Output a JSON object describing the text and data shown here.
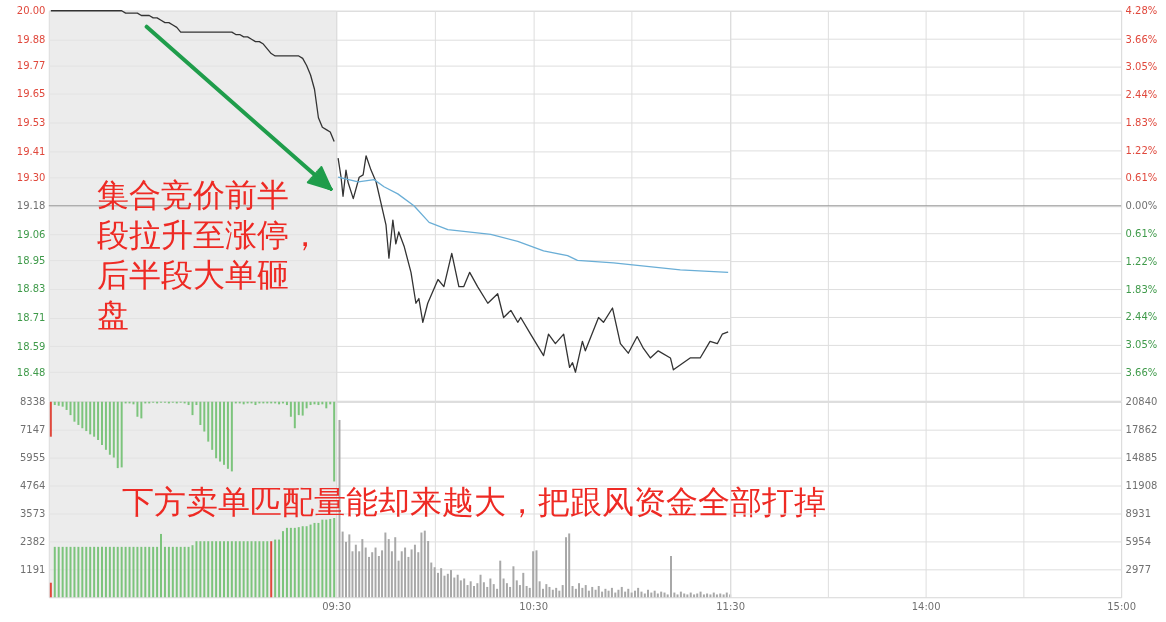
{
  "chart_data": [
    {
      "type": "line",
      "categories": [
        null,
        null,
        null,
        null,
        null,
        null,
        null,
        null,
        null,
        null,
        null,
        null,
        null,
        null,
        null,
        null,
        null,
        null,
        null,
        null,
        null,
        null,
        null,
        null,
        null,
        null,
        null,
        null,
        null,
        null,
        null,
        null,
        null,
        null,
        null,
        null,
        null,
        null,
        null,
        null,
        null,
        null,
        null,
        null,
        null,
        null,
        null,
        null,
        null,
        null,
        null,
        null,
        null,
        null,
        null,
        null,
        null,
        null,
        null,
        null,
        null,
        null,
        null,
        null,
        null,
        null,
        null,
        null,
        null,
        null,
        null,
        null,
        null
      ],
      "ylim": [
        18.36,
        20.0
      ],
      "yticks": [
        {
          "value": 20.0,
          "label": "20.00"
        },
        19.88,
        19.77,
        19.65,
        19.53,
        19.41,
        {
          "value": 19.3,
          "label": "19.30"
        },
        19.18,
        19.06,
        18.95,
        18.83,
        18.71,
        18.59,
        18.48
      ],
      "tick_labels": "y",
      "grid": "y",
      "bands": [
        {
          "axis": "y",
          "from": 18.36,
          "to": 20.0,
          "color": "#e4e4e4"
        }
      ],
      "ref_lines": [
        {
          "axis": "y",
          "value": 19.18,
          "color": "#9a9a9a"
        }
      ],
      "annotations": [
        "集合竞价前半段拉升至涨停，后半段大单砸盘"
      ],
      "series": [
        {
          "color": "#333333",
          "values": [
            20.0,
            20.0,
            20.0,
            20.0,
            20.0,
            20.0,
            20.0,
            20.0,
            20.0,
            20.0,
            20.0,
            20.0,
            20.0,
            20.0,
            20.0,
            20.0,
            20.0,
            20.0,
            20.0,
            19.99,
            19.99,
            19.99,
            19.99,
            19.98,
            19.98,
            19.98,
            19.97,
            19.97,
            19.96,
            19.95,
            19.95,
            19.94,
            19.93,
            19.91,
            19.91,
            19.91,
            19.91,
            19.91,
            19.91,
            19.91,
            19.91,
            19.91,
            19.91,
            19.91,
            19.91,
            19.91,
            19.91,
            19.9,
            19.9,
            19.89,
            19.89,
            19.88,
            19.87,
            19.87,
            19.86,
            19.84,
            19.82,
            19.81,
            19.81,
            19.81,
            19.81,
            19.81,
            19.81,
            19.81,
            19.8,
            19.77,
            19.73,
            19.67,
            19.55,
            19.51,
            19.5,
            19.49,
            19.45
          ]
        }
      ]
    },
    {
      "type": "line",
      "xlim": [
        9.5,
        11.5
      ],
      "xticks": [
        {
          "value": 9.5,
          "label": null
        },
        {
          "value": 10,
          "label": null
        },
        {
          "value": 10.5,
          "label": null
        },
        {
          "value": 11,
          "label": null
        },
        {
          "value": 11.5,
          "label": null
        }
      ],
      "ylim": [
        18.36,
        20.0
      ],
      "yticks": [
        {
          "value": 20.0,
          "label": "20.00"
        },
        19.88,
        19.77,
        19.65,
        19.53,
        19.41,
        {
          "value": 19.3,
          "label": "19.30"
        },
        19.18,
        19.06,
        18.95,
        18.83,
        18.71,
        18.59,
        18.48
      ],
      "tick_labels": false,
      "grid": true,
      "ref_lines": [
        {
          "axis": "y",
          "value": 19.18,
          "color": "#9a9a9a"
        }
      ],
      "series": [
        {
          "color": "#333333",
          "x": [
            9.51,
            9.525,
            9.535,
            9.55,
            9.56,
            9.587,
            9.617,
            9.637,
            9.652,
            9.677,
            9.703,
            9.728,
            9.753,
            9.768,
            9.788,
            9.803,
            9.818,
            9.845,
            9.88,
            9.905,
            9.92,
            9.94,
            9.965,
            10.017,
            10.047,
            10.087,
            10.123,
            10.148,
            10.178,
            10.218,
            10.27,
            10.32,
            10.35,
            10.387,
            10.422,
            10.437,
            10.487,
            10.553,
            10.578,
            10.613,
            10.655,
            10.685,
            10.7,
            10.715,
            10.75,
            10.765,
            10.832,
            10.857,
            10.903,
            10.943,
            10.983,
            11.028,
            11.06,
            11.095,
            11.135,
            11.197,
            11.212,
            11.297,
            11.348,
            11.398,
            11.435,
            11.46,
            11.49
          ],
          "values": [
            19.38,
            19.3,
            19.22,
            19.33,
            19.28,
            19.21,
            19.3,
            19.31,
            19.39,
            19.33,
            19.28,
            19.19,
            19.1,
            18.96,
            19.12,
            19.02,
            19.07,
            19.01,
            18.9,
            18.77,
            18.79,
            18.69,
            18.77,
            18.87,
            18.84,
            18.98,
            18.84,
            18.84,
            18.9,
            18.84,
            18.77,
            18.81,
            18.71,
            18.74,
            18.69,
            18.71,
            18.64,
            18.55,
            18.64,
            18.6,
            18.64,
            18.5,
            18.52,
            18.48,
            18.61,
            18.57,
            18.71,
            18.69,
            18.75,
            18.6,
            18.56,
            18.63,
            18.58,
            18.54,
            18.57,
            18.54,
            18.49,
            18.54,
            18.54,
            18.61,
            18.6,
            18.64,
            18.65
          ]
        },
        {
          "color": "#6aaed6",
          "x": [
            9.51,
            9.612,
            9.693,
            9.743,
            9.813,
            9.895,
            9.972,
            10.067,
            10.285,
            10.422,
            10.553,
            10.675,
            10.725,
            10.908,
            11.247,
            11.49
          ],
          "values": [
            19.3,
            19.28,
            19.29,
            19.26,
            19.23,
            19.18,
            19.11,
            19.08,
            19.06,
            19.03,
            18.99,
            18.97,
            18.95,
            18.94,
            18.91,
            18.9
          ]
        }
      ]
    },
    {
      "type": "line",
      "xlim": [
        13,
        15
      ],
      "xticks": [
        {
          "value": 13,
          "label": null
        },
        {
          "value": 13.5,
          "label": null
        },
        {
          "value": 14,
          "label": null
        },
        {
          "value": 14.5,
          "label": null
        },
        {
          "value": 15,
          "label": null
        }
      ],
      "ylim": [
        -4.28,
        4.28
      ],
      "yticks": [
        {
          "value": 4.28,
          "label": "4.28%"
        },
        {
          "value": 3.66,
          "label": "3.66%"
        },
        {
          "value": 3.05,
          "label": "3.05%"
        },
        {
          "value": 2.44,
          "label": "2.44%"
        },
        {
          "value": 1.83,
          "label": "1.83%"
        },
        {
          "value": 1.22,
          "label": "1.22%"
        },
        {
          "value": 0.61,
          "label": "0.61%"
        },
        {
          "value": 0,
          "label": "0.00%"
        },
        {
          "value": -0.61,
          "label": "0.61%"
        },
        {
          "value": -1.22,
          "label": "1.22%"
        },
        {
          "value": -1.83,
          "label": "1.83%"
        },
        {
          "value": -2.44,
          "label": "2.44%"
        },
        {
          "value": -3.05,
          "label": "3.05%"
        },
        {
          "value": -3.66,
          "label": "3.66%"
        }
      ],
      "tick_labels": "y",
      "grid": true,
      "ref_lines": [
        {
          "axis": "y",
          "value": 0,
          "color": "#9a9a9a"
        }
      ]
    },
    {
      "type": "bar",
      "categories": [
        null,
        null,
        null,
        null,
        null,
        null,
        null,
        null,
        null,
        null,
        null,
        null,
        null,
        null,
        null,
        null,
        null,
        null,
        null,
        null,
        null,
        null,
        null,
        null,
        null,
        null,
        null,
        null,
        null,
        null,
        null,
        null,
        null,
        null,
        null,
        null,
        null,
        null,
        null,
        null,
        null,
        null,
        null,
        null,
        null,
        null,
        null,
        null,
        null,
        null,
        null,
        null,
        null,
        null,
        null,
        null,
        null,
        null,
        null,
        null,
        null,
        null,
        null,
        null,
        null,
        null,
        null,
        null,
        null,
        null,
        null,
        null,
        null
      ],
      "ylim": [
        0,
        8338
      ],
      "yticks": [
        1191,
        2382,
        3573,
        4764,
        5955,
        7147,
        8338
      ],
      "tick_labels": "y",
      "grid": "y",
      "bands": [
        {
          "axis": "y",
          "from": 0,
          "to": 8338,
          "color": "#e4e4e4"
        }
      ],
      "series": [
        {
          "colors": [
            "#e0483c",
            "#7cc47c",
            "#7cc47c",
            "#7cc47c",
            "#7cc47c",
            "#7cc47c",
            "#7cc47c",
            "#7cc47c",
            "#7cc47c",
            "#7cc47c",
            "#7cc47c",
            "#7cc47c",
            "#7cc47c",
            "#7cc47c",
            "#7cc47c",
            "#7cc47c",
            "#7cc47c",
            "#7cc47c",
            "#7cc47c",
            "#7cc47c",
            "#7cc47c",
            "#7cc47c",
            "#7cc47c",
            "#7cc47c",
            "#7cc47c",
            "#7cc47c",
            "#7cc47c",
            "#7cc47c",
            "#7cc47c",
            "#7cc47c",
            "#7cc47c",
            "#7cc47c",
            "#7cc47c",
            "#7cc47c",
            "#7cc47c",
            "#7cc47c",
            "#7cc47c",
            "#7cc47c",
            "#7cc47c",
            "#7cc47c",
            "#7cc47c",
            "#7cc47c",
            "#7cc47c",
            "#7cc47c",
            "#7cc47c",
            "#7cc47c",
            "#7cc47c",
            "#7cc47c",
            "#7cc47c",
            "#7cc47c",
            "#7cc47c",
            "#7cc47c",
            "#7cc47c",
            "#7cc47c",
            "#7cc47c",
            "#7cc47c",
            "#7cc47c",
            "#7cc47c",
            "#7cc47c",
            "#7cc47c",
            "#7cc47c",
            "#7cc47c",
            "#7cc47c",
            "#7cc47c",
            "#7cc47c",
            "#7cc47c",
            "#7cc47c",
            "#7cc47c",
            "#7cc47c",
            "#7cc47c",
            "#7cc47c",
            "#7cc47c",
            "#7cc47c"
          ],
          "base": [
            8338,
            8338,
            8338,
            8338,
            8338,
            8338,
            8338,
            8338,
            8338,
            8338,
            8338,
            8338,
            8338,
            8338,
            8338,
            8338,
            8338,
            8338,
            8338,
            8338,
            8338,
            8338,
            8338,
            8338,
            8338,
            8338,
            8338,
            8338,
            8338,
            8338,
            8338,
            8338,
            8338,
            8338,
            8338,
            8338,
            8338,
            8338,
            8338,
            8338,
            8338,
            8338,
            8338,
            8338,
            8338,
            8338,
            8338,
            8338,
            8338,
            8338,
            8338,
            8338,
            8338,
            8338,
            8338,
            8338,
            8338,
            8338,
            8338,
            8338,
            8338,
            8338,
            8338,
            8338,
            8338,
            8338,
            8338,
            8338,
            8338,
            8338,
            8338,
            8338,
            8338
          ],
          "values": [
            -1490,
            -140,
            -170,
            -210,
            -350,
            -570,
            -850,
            -990,
            -1130,
            -1250,
            -1390,
            -1490,
            -1630,
            -1840,
            -2050,
            -2260,
            -2380,
            -2830,
            -2800,
            -70,
            -70,
            -110,
            -640,
            -710,
            -70,
            -70,
            -40,
            -70,
            -40,
            -40,
            -70,
            -40,
            -70,
            -40,
            -70,
            -140,
            -570,
            -140,
            -990,
            -1270,
            -1700,
            -2050,
            -2410,
            -2550,
            -2690,
            -2860,
            -2970,
            -70,
            -70,
            -110,
            -70,
            -70,
            -140,
            -70,
            -70,
            -70,
            -70,
            -70,
            -110,
            -70,
            -140,
            -640,
            -1130,
            -570,
            -590,
            -280,
            -140,
            -110,
            -140,
            -110,
            -280,
            -110,
            -3400
          ]
        },
        {
          "colors": [
            "#e0483c",
            "#7cc47c",
            "#7cc47c",
            "#7cc47c",
            "#7cc47c",
            "#7cc47c",
            "#7cc47c",
            "#7cc47c",
            "#7cc47c",
            "#7cc47c",
            "#7cc47c",
            "#7cc47c",
            "#7cc47c",
            "#7cc47c",
            "#7cc47c",
            "#7cc47c",
            "#7cc47c",
            "#7cc47c",
            "#7cc47c",
            "#7cc47c",
            "#7cc47c",
            "#7cc47c",
            "#7cc47c",
            "#7cc47c",
            "#7cc47c",
            "#7cc47c",
            "#7cc47c",
            "#7cc47c",
            "#7cc47c",
            "#7cc47c",
            "#7cc47c",
            "#7cc47c",
            "#7cc47c",
            "#7cc47c",
            "#7cc47c",
            "#7cc47c",
            "#7cc47c",
            "#7cc47c",
            "#7cc47c",
            "#7cc47c",
            "#7cc47c",
            "#7cc47c",
            "#7cc47c",
            "#7cc47c",
            "#7cc47c",
            "#7cc47c",
            "#7cc47c",
            "#7cc47c",
            "#7cc47c",
            "#7cc47c",
            "#7cc47c",
            "#7cc47c",
            "#7cc47c",
            "#7cc47c",
            "#7cc47c",
            "#7cc47c",
            "#e0483c",
            "#7cc47c",
            "#7cc47c",
            "#7cc47c",
            "#7cc47c",
            "#7cc47c",
            "#7cc47c",
            "#7cc47c",
            "#7cc47c",
            "#7cc47c",
            "#7cc47c",
            "#7cc47c",
            "#7cc47c",
            "#7cc47c",
            "#7cc47c",
            "#7cc47c",
            "#7cc47c"
          ],
          "values": [
            620,
            2150,
            2150,
            2150,
            2150,
            2150,
            2150,
            2150,
            2150,
            2150,
            2150,
            2150,
            2150,
            2150,
            2150,
            2150,
            2150,
            2150,
            2150,
            2150,
            2150,
            2150,
            2150,
            2150,
            2150,
            2150,
            2150,
            2150,
            2700,
            2150,
            2150,
            2150,
            2150,
            2150,
            2150,
            2150,
            2220,
            2390,
            2390,
            2390,
            2390,
            2390,
            2390,
            2390,
            2390,
            2390,
            2390,
            2390,
            2390,
            2390,
            2390,
            2390,
            2390,
            2390,
            2390,
            2390,
            2390,
            2460,
            2460,
            2820,
            2960,
            2960,
            2960,
            2990,
            3030,
            3030,
            3100,
            3170,
            3170,
            3310,
            3310,
            3340,
            3380
          ]
        }
      ]
    },
    {
      "type": "bar",
      "xlim": [
        9.5,
        11.5
      ],
      "xticks": [
        {
          "value": 9.5,
          "label": "09:30"
        },
        {
          "value": 10,
          "label": null
        },
        {
          "value": 10.5,
          "label": "10:30"
        },
        {
          "value": 11,
          "label": null
        },
        {
          "value": 11.5,
          "label": "11:30"
        }
      ],
      "ylim": [
        0,
        20840
      ],
      "yticks": [
        2977,
        5954,
        8931,
        11908,
        14885,
        17862,
        20840
      ],
      "tick_labels": "x",
      "grid": true,
      "annotations": [
        "下方卖单匹配量能却来越大，把跟风资金全部打掉"
      ],
      "series": [
        {
          "color": "#a8a8a8",
          "x": [
            9.517,
            9.533,
            9.55,
            9.567,
            9.583,
            9.6,
            9.617,
            9.633,
            9.65,
            9.667,
            9.683,
            9.7,
            9.717,
            9.733,
            9.75,
            9.767,
            9.783,
            9.8,
            9.817,
            9.833,
            9.85,
            9.867,
            9.883,
            9.9,
            9.917,
            9.933,
            9.95,
            9.967,
            9.983,
            10.0,
            10.017,
            10.033,
            10.05,
            10.067,
            10.083,
            10.1,
            10.117,
            10.133,
            10.15,
            10.167,
            10.183,
            10.2,
            10.217,
            10.233,
            10.25,
            10.267,
            10.283,
            10.3,
            10.317,
            10.333,
            10.35,
            10.367,
            10.383,
            10.4,
            10.417,
            10.433,
            10.45,
            10.467,
            10.483,
            10.5,
            10.517,
            10.533,
            10.55,
            10.567,
            10.583,
            10.6,
            10.617,
            10.633,
            10.65,
            10.667,
            10.683,
            10.7,
            10.717,
            10.733,
            10.75,
            10.767,
            10.783,
            10.8,
            10.817,
            10.833,
            10.85,
            10.867,
            10.883,
            10.9,
            10.917,
            10.933,
            10.95,
            10.967,
            10.983,
            11.0,
            11.017,
            11.033,
            11.05,
            11.067,
            11.083,
            11.1,
            11.117,
            11.133,
            11.15,
            11.167,
            11.183,
            11.2,
            11.217,
            11.233,
            11.25,
            11.267,
            11.283,
            11.3,
            11.317,
            11.333,
            11.35,
            11.367,
            11.383,
            11.4,
            11.417,
            11.433,
            11.45,
            11.467,
            11.483,
            11.5
          ],
          "values": [
            18900,
            7000,
            5900,
            6700,
            4900,
            5600,
            4900,
            6200,
            5300,
            4300,
            4800,
            5300,
            4400,
            5000,
            6900,
            6200,
            4900,
            6400,
            3900,
            4900,
            5300,
            4300,
            5100,
            5600,
            4800,
            6900,
            7100,
            6000,
            3700,
            3200,
            2600,
            3100,
            2300,
            2500,
            2900,
            2100,
            2400,
            1800,
            2000,
            1300,
            1700,
            1200,
            1500,
            2400,
            1600,
            1100,
            2000,
            1400,
            900,
            3900,
            2000,
            1500,
            1100,
            3300,
            1800,
            1300,
            2600,
            1200,
            1000,
            4900,
            5000,
            1700,
            900,
            1400,
            1100,
            800,
            1000,
            700,
            1300,
            6400,
            6800,
            1200,
            900,
            1500,
            1000,
            1300,
            700,
            1100,
            800,
            1200,
            600,
            900,
            700,
            1000,
            500,
            800,
            1100,
            600,
            900,
            500,
            700,
            1000,
            600,
            400,
            800,
            500,
            700,
            400,
            600,
            500,
            300,
            4400,
            500,
            300,
            600,
            400,
            300,
            500,
            300,
            400,
            600,
            300,
            400,
            300,
            500,
            300,
            400,
            300,
            500,
            300
          ]
        }
      ]
    },
    {
      "type": "bar",
      "xlim": [
        13,
        15
      ],
      "xticks": [
        {
          "value": 13,
          "label": null
        },
        {
          "value": 13.5,
          "label": null
        },
        {
          "value": 14,
          "label": "14:00"
        },
        {
          "value": 14.5,
          "label": null
        },
        {
          "value": 15,
          "label": "15:00"
        }
      ],
      "ylim": [
        0,
        20840
      ],
      "yticks": [
        2977,
        5954,
        8931,
        11908,
        14885,
        17862,
        20840
      ],
      "grid": true
    }
  ]
}
